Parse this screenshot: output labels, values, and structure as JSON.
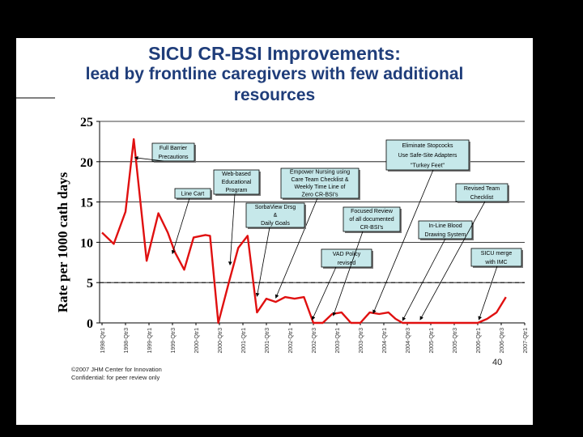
{
  "slide": {
    "title_line1": "SICU CR-BSI Improvements:",
    "title_line2": "lead by frontline caregivers with few additional",
    "title_line3": "resources",
    "footer_line1": "©2007 JHM Center for Innovation",
    "footer_line2": "Confidential:  for peer review only",
    "page_number": "40"
  },
  "chart_data": {
    "type": "line",
    "ylabel": "Rate per 1000 cath days",
    "ylim": [
      0,
      25
    ],
    "yticks": [
      0,
      5,
      10,
      15,
      20,
      25
    ],
    "grid": true,
    "reference_line": 5,
    "xlim": [
      0,
      36
    ],
    "categories": [
      "1998-Qtr1",
      "1998-Qtr3",
      "1999-Qtr1",
      "1999-Qtr3",
      "2000-Qtr1",
      "2000-Qtr3",
      "2001-Qtr1",
      "2001-Qtr3",
      "2002-Qtr1",
      "2002-Qtr3",
      "2003-Qtr1",
      "2003-Qtr3",
      "2004-Qtr1",
      "2004-Qtr3",
      "2005-Qtr1",
      "2005-Qtr3",
      "2006-Qtr1",
      "2006-Qtr3",
      "2007-Qtr1"
    ],
    "category_positions": [
      0,
      2,
      4,
      6,
      8,
      10,
      12,
      14,
      16,
      18,
      20,
      22,
      24,
      26,
      28,
      30,
      32,
      34,
      36
    ],
    "series": [
      {
        "color": "#e01010",
        "points": [
          [
            0,
            11.2
          ],
          [
            1,
            9.8
          ],
          [
            2,
            13.8
          ],
          [
            2.7,
            22.8
          ],
          [
            3.8,
            7.7
          ],
          [
            4.8,
            13.6
          ],
          [
            5.6,
            11.2
          ],
          [
            6.2,
            8.8
          ],
          [
            7,
            6.6
          ],
          [
            7.8,
            10.6
          ],
          [
            8.8,
            10.9
          ],
          [
            9.2,
            10.8
          ],
          [
            9.9,
            0.0
          ],
          [
            10.8,
            5.0
          ],
          [
            11.6,
            9.3
          ],
          [
            12.4,
            10.8
          ],
          [
            13.2,
            1.3
          ],
          [
            14,
            3.0
          ],
          [
            14.8,
            2.6
          ],
          [
            15.6,
            3.2
          ],
          [
            16.4,
            3.0
          ],
          [
            17.2,
            3.2
          ],
          [
            18,
            0.0
          ],
          [
            18.8,
            0.0
          ],
          [
            19.6,
            1.1
          ],
          [
            20.4,
            1.3
          ],
          [
            21.2,
            0.0
          ],
          [
            22,
            0.0
          ],
          [
            22.8,
            1.3
          ],
          [
            23.6,
            1.1
          ],
          [
            24.4,
            1.3
          ],
          [
            25,
            0.5
          ],
          [
            25.6,
            0.0
          ],
          [
            26.4,
            0.0
          ],
          [
            27.2,
            0.0
          ],
          [
            28,
            0.0
          ],
          [
            29,
            0.0
          ],
          [
            30,
            0.0
          ],
          [
            31,
            0.0
          ],
          [
            32,
            0.0
          ],
          [
            32.8,
            0.5
          ],
          [
            33.6,
            1.3
          ],
          [
            34.4,
            3.2
          ]
        ]
      }
    ],
    "annotations": [
      {
        "lines": [
          "Full Barrier",
          "Precautions"
        ],
        "arrow_to": [
          2.8,
          20.5
        ]
      },
      {
        "lines": [
          "Line Cart"
        ],
        "arrow_to": [
          6.0,
          8.6
        ]
      },
      {
        "lines": [
          "Web-based",
          "Educational",
          "Program"
        ],
        "arrow_to": [
          10.9,
          7.2
        ]
      },
      {
        "lines": [
          "Empower Nursing using",
          "Care Team Checklist &",
          "Weekly Time Line of",
          "Zero CR-BSI's"
        ],
        "arrow_to": [
          14.8,
          3.1
        ]
      },
      {
        "lines": [
          "SorbaView Drsg",
          "&",
          "Daily Goals"
        ],
        "arrow_to": [
          13.2,
          3.3
        ]
      },
      {
        "lines": [
          "VAD Policy",
          "revised"
        ],
        "arrow_to": [
          17.9,
          0.4
        ]
      },
      {
        "lines": [
          "Focused Review",
          "of all documented",
          "CR-BSI's"
        ],
        "arrow_to": [
          19.7,
          0.9
        ]
      },
      {
        "lines": [
          "Eliminate Stopcocks",
          "Use Safe-Site Adapters",
          "\"Turkey Feet\""
        ],
        "arrow_to": [
          23.1,
          1.2
        ]
      },
      {
        "lines": [
          "In-Line Blood",
          "Drawing System"
        ],
        "arrow_to": [
          25.6,
          0.3
        ]
      },
      {
        "lines": [
          "Revised Team",
          "Checklist"
        ],
        "arrow_to": [
          27.1,
          0.4
        ]
      },
      {
        "lines": [
          "SICU merge",
          "with IMC"
        ],
        "arrow_to": [
          32.1,
          0.4
        ]
      }
    ]
  }
}
